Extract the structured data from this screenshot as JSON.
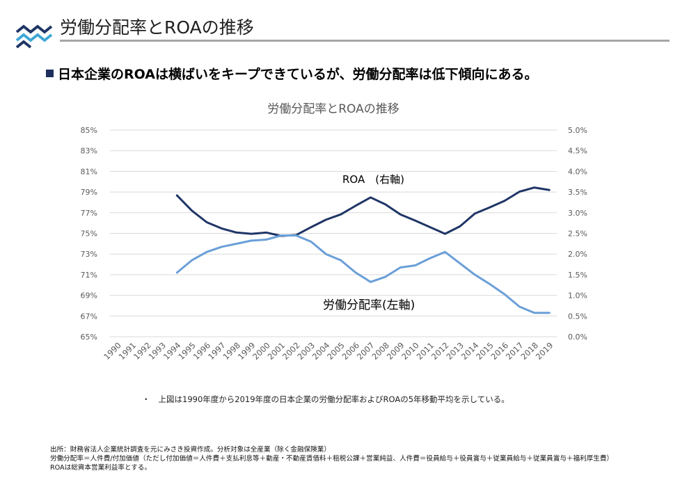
{
  "header": {
    "title": "労働分配率とROAの推移",
    "headline": "日本企業のROAは横ばいをキープできているが、労働分配率は低下傾向にある。"
  },
  "chart_data": {
    "type": "line",
    "title": "労働分配率とROAの推移",
    "categories": [
      "1990",
      "1991",
      "1992",
      "1993",
      "1994",
      "1995",
      "1996",
      "1997",
      "1998",
      "1999",
      "2000",
      "2001",
      "2002",
      "2003",
      "2004",
      "2005",
      "2006",
      "2007",
      "2008",
      "2009",
      "2010",
      "2011",
      "2012",
      "2013",
      "2014",
      "2015",
      "2016",
      "2017",
      "2018",
      "2019"
    ],
    "y_left": {
      "min": 65,
      "max": 85,
      "step": 2,
      "ticks": [
        "65%",
        "67%",
        "69%",
        "71%",
        "73%",
        "75%",
        "77%",
        "79%",
        "81%",
        "83%",
        "85%"
      ]
    },
    "y_right": {
      "min": 0,
      "max": 5,
      "step": 0.5,
      "ticks": [
        "0.0%",
        "0.5%",
        "1.0%",
        "1.5%",
        "2.0%",
        "2.5%",
        "3.0%",
        "3.5%",
        "4.0%",
        "4.5%",
        "5.0%"
      ]
    },
    "grid": "horizontal",
    "series": [
      {
        "name": "ROA　(右軸)",
        "axis": "right",
        "color": "#1f3566",
        "values": [
          null,
          null,
          null,
          null,
          3.42,
          3.05,
          2.77,
          2.62,
          2.52,
          2.49,
          2.52,
          2.44,
          2.46,
          2.65,
          2.83,
          2.96,
          3.17,
          3.37,
          3.2,
          2.96,
          2.81,
          2.65,
          2.49,
          2.67,
          2.98,
          3.13,
          3.29,
          3.51,
          3.61,
          3.55
        ]
      },
      {
        "name": "労働分配率(左軸)",
        "axis": "left",
        "color": "#6a9fd8",
        "values": [
          null,
          null,
          null,
          null,
          71.2,
          72.4,
          73.2,
          73.7,
          74.0,
          74.3,
          74.4,
          74.8,
          74.8,
          74.2,
          73.0,
          72.4,
          71.2,
          70.3,
          70.8,
          71.7,
          71.9,
          72.6,
          73.2,
          72.1,
          71.0,
          70.1,
          69.1,
          67.9,
          67.3,
          67.3
        ]
      }
    ],
    "annotations": [
      "ROA　(右軸)",
      "労働分配率(左軸)"
    ]
  },
  "footnote": "上図は1990年度から2019年度の日本企業の労働分配率およびROAの5年移動平均を示している。",
  "bullet_dot": "・",
  "source_lines": [
    "出所：財務省法人企業統計調査を元にみさき投資作成。分析対象は全産業（除く金融保険業）",
    "労働分配率＝人件費/付加価値（ただし付加価値＝人件費＋支払利息等＋動産・不動産賃借料＋租税公課＋営業純益、人件費＝役員給与＋役員賞与＋従業員給与＋従業員賞与＋福利厚生費）",
    "ROAは総資本営業利益率とする。"
  ]
}
